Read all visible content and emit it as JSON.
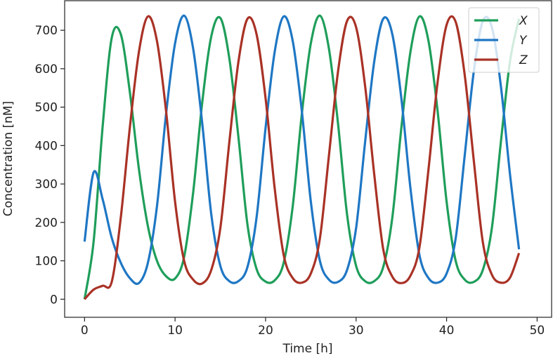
{
  "chart_data": {
    "type": "line",
    "x_label": "Time [h]",
    "y_label": "Concentration [nM]",
    "x": [
      0,
      1,
      2,
      3,
      4,
      5,
      6,
      7,
      8,
      9,
      10,
      11,
      12,
      13,
      14,
      15,
      16,
      17,
      18,
      19,
      20,
      21,
      22,
      23,
      24,
      25,
      26,
      27,
      28,
      29,
      30,
      31,
      32,
      33,
      34,
      35,
      36,
      37,
      38,
      39,
      40,
      41,
      42,
      43,
      44,
      45,
      46,
      47,
      48
    ],
    "series": [
      {
        "name": "X",
        "color": "#1f9e5a",
        "values": [
          0,
          150,
          450,
          680,
          690,
          540,
          340,
          190,
          100,
          60,
          54,
          110,
          278,
          512,
          684,
          732,
          626,
          422,
          194,
          79,
          46,
          49,
          95,
          242,
          481,
          666,
          738,
          652,
          458,
          221,
          87,
          47,
          47,
          84,
          212,
          446,
          643,
          736,
          672,
          491,
          254,
          100,
          51,
          45,
          76,
          185,
          410,
          618,
          730
        ]
      },
      {
        "name": "Y",
        "color": "#1f77c4",
        "values": [
          150,
          330,
          260,
          160,
          95,
          55,
          42,
          95,
          242,
          481,
          666,
          738,
          652,
          458,
          221,
          87,
          47,
          47,
          84,
          212,
          446,
          643,
          736,
          672,
          491,
          254,
          100,
          51,
          45,
          76,
          185,
          410,
          618,
          730,
          690,
          523,
          290,
          115,
          55,
          43,
          67,
          158,
          374,
          592,
          724,
          708,
          554,
          326,
          130
        ]
      },
      {
        "name": "Z",
        "color": "#a93226",
        "values": [
          0,
          25,
          35,
          45,
          212,
          446,
          643,
          736,
          672,
          491,
          254,
          100,
          51,
          41,
          76,
          185,
          410,
          618,
          730,
          690,
          523,
          290,
          115,
          55,
          43,
          67,
          158,
          374,
          592,
          724,
          708,
          554,
          326,
          130,
          59,
          42,
          61,
          135,
          338,
          564,
          714,
          722,
          584,
          362,
          149,
          64,
          43,
          56,
          120
        ]
      }
    ],
    "xlim": [
      -2.2,
      51.6
    ],
    "ylim": [
      -47,
      777
    ],
    "xticks": [
      0,
      10,
      20,
      30,
      40,
      50
    ],
    "yticks": [
      0,
      100,
      200,
      300,
      400,
      500,
      600,
      700
    ],
    "legend": "upper right"
  }
}
